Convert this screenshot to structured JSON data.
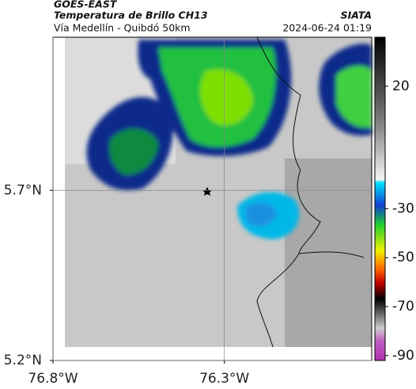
{
  "header": {
    "source": "GOES-EAST",
    "product": "Temperatura de Brillo CH13",
    "route": "Vía Medellín - Quibdó 50km",
    "agency": "SIATA",
    "timestamp": "2024-06-24 01:19"
  },
  "map": {
    "xlim": [
      -76.8,
      -75.87
    ],
    "ylim": [
      5.2,
      6.15
    ],
    "xticks": [
      {
        "value": -76.8,
        "label": "76.8°W"
      },
      {
        "value": -76.3,
        "label": "76.3°W"
      }
    ],
    "yticks": [
      {
        "value": 5.2,
        "label": "5.2°N"
      },
      {
        "value": 5.7,
        "label": "5.7°N"
      }
    ]
  },
  "colorbar": {
    "lim": [
      40,
      -92
    ],
    "ticks": [
      20,
      -30,
      -50,
      -70,
      -90
    ]
  }
}
